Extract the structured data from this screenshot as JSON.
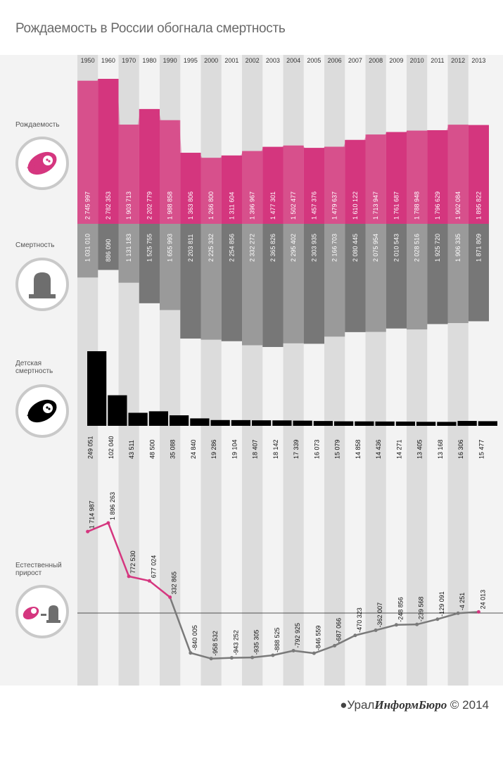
{
  "title": "Рождаемость в России обогнала смертность",
  "footer": {
    "prefix": "Урал",
    "brand": "ИнформБюро",
    "suffix": " © 2014"
  },
  "sections": {
    "births": "Рождаемость",
    "deaths": "Смертность",
    "infant": "Детская смертность",
    "natural": "Естественный прирост"
  },
  "colors": {
    "births": "#d5367f",
    "births_light": "#d95e94",
    "deaths_dark": "#777777",
    "deaths_light": "#9a9a9a",
    "infant": "#000000",
    "growth_pos": "#d5367f",
    "growth_neg": "#7a7a7a",
    "stripe": "#dcdcdc"
  },
  "icons": {
    "births": "baby-icon",
    "deaths": "gravestone-icon",
    "infant": "baby-icon",
    "natural": "baby-minus-gravestone-icon"
  },
  "chart_data": {
    "type": "area",
    "categories": [
      "1950",
      "1960",
      "1970",
      "1980",
      "1990",
      "1995",
      "2000",
      "2001",
      "2002",
      "2003",
      "2004",
      "2005",
      "2006",
      "2007",
      "2008",
      "2009",
      "2010",
      "2011",
      "2012",
      "2013"
    ],
    "series": [
      {
        "name": "Рождаемость",
        "values": [
          2745997,
          2782353,
          1903713,
          2202779,
          1988858,
          1363806,
          1266800,
          1311604,
          1396967,
          1477301,
          1502477,
          1457376,
          1479637,
          1610122,
          1713947,
          1761687,
          1788948,
          1796629,
          1902084,
          1895822
        ],
        "labels": [
          "2 745 997",
          "2 782 353",
          "1 903 713",
          "2 202 779",
          "1 988 858",
          "1 363 806",
          "1 266 800",
          "1 311 604",
          "1 396 967",
          "1 477 301",
          "1 502 477",
          "1 457 376",
          "1 479 637",
          "1 610 122",
          "1 713 947",
          "1 761 687",
          "1 788 948",
          "1 796 629",
          "1 902 084",
          "1 895 822"
        ]
      },
      {
        "name": "Смертность",
        "values": [
          1031010,
          886090,
          1131183,
          1525755,
          1655993,
          2203811,
          2225332,
          2254856,
          2332272,
          2365826,
          2295402,
          2303935,
          2166703,
          2080445,
          2075954,
          2010543,
          2028516,
          1925720,
          1906335,
          1871809
        ],
        "labels": [
          "1 031 010",
          "886 090",
          "1 131 183",
          "1 525 755",
          "1 655 993",
          "2 203 811",
          "2 225 332",
          "2 254 856",
          "2 332 272",
          "2 365 826",
          "2 295 402",
          "2 303 935",
          "2 166 703",
          "2 080 445",
          "2 075 954",
          "2 010 543",
          "2 028 516",
          "1 925 720",
          "1 906 335",
          "1 871 809"
        ]
      },
      {
        "name": "Детская смертность",
        "values": [
          249051,
          102040,
          43511,
          48500,
          35088,
          24840,
          19286,
          19104,
          18407,
          18142,
          17339,
          16073,
          15079,
          14858,
          14436,
          14271,
          13405,
          13168,
          16306,
          15477
        ],
        "labels": [
          "249 051",
          "102 040",
          "43 511",
          "48 500",
          "35 088",
          "24 840",
          "19 286",
          "19 104",
          "18 407",
          "18 142",
          "17 339",
          "16 073",
          "15 079",
          "14 858",
          "14 436",
          "14 271",
          "13 405",
          "13 168",
          "16 306",
          "15 477"
        ]
      },
      {
        "name": "Естественный прирост",
        "values": [
          1714987,
          1896263,
          772530,
          677024,
          332865,
          -840005,
          -958532,
          -943252,
          -935305,
          -888525,
          -792925,
          -846559,
          -687066,
          -470323,
          -362007,
          -248856,
          -239568,
          -129091,
          -4251,
          24013
        ],
        "labels": [
          "1 714 987",
          "1 896 263",
          "772 530",
          "677 024",
          "332 865",
          "-840 005",
          "-958 532",
          "-943 252",
          "-935 305",
          "-888 525",
          "-792 925",
          "-846 559",
          "-687 066",
          "-470 323",
          "-362 007",
          "-248 856",
          "-239 568",
          "-129 091",
          "-4 251",
          "24 013"
        ]
      }
    ]
  }
}
